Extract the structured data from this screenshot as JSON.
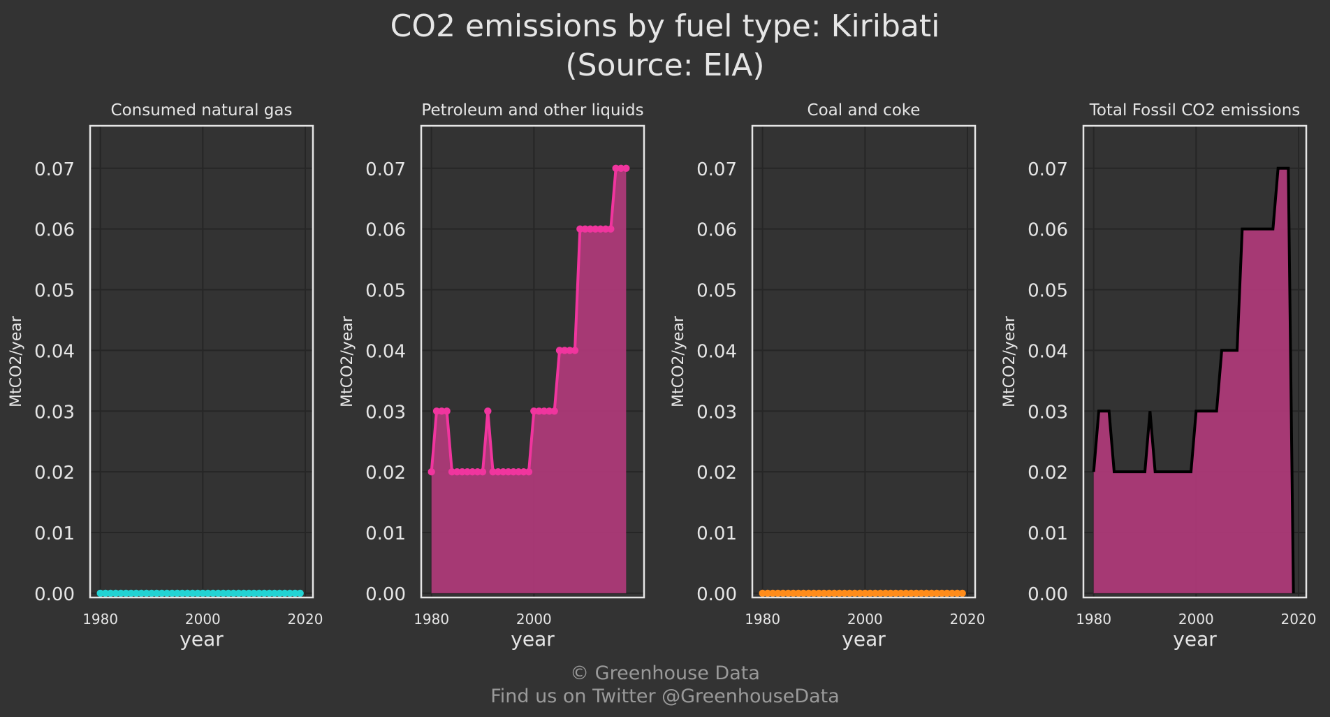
{
  "title_line1": "CO2 emissions by fuel type: Kiribati",
  "title_line2": "(Source: EIA)",
  "footer_line1": "© Greenhouse Data",
  "footer_line2": "Find us on Twitter @GreenhouseData",
  "colors": {
    "background": "#333333",
    "grid": "#262626",
    "frame": "#e6e6e6",
    "text": "#e6e6e6",
    "footer_text": "#9a9a9a",
    "gas": "#22d3d3",
    "petroleum": "#f0359e",
    "coal": "#ff8c1a",
    "total_line": "#000000",
    "fill": "#b03a7a"
  },
  "chart_data": [
    {
      "type": "scatter",
      "title": "Consumed natural gas",
      "xlabel": "year",
      "ylabel": "MtCO2/year",
      "xlim": [
        1978,
        2021.5
      ],
      "ylim": [
        -0.0007,
        0.077
      ],
      "xticks": [
        "1980",
        "2000",
        "2020"
      ],
      "yticks": [
        "0.00",
        "0.01",
        "0.02",
        "0.03",
        "0.04",
        "0.05",
        "0.06",
        "0.07"
      ],
      "series": [
        {
          "x": [
            1980,
            1981,
            1982,
            1983,
            1984,
            1985,
            1986,
            1987,
            1988,
            1989,
            1990,
            1991,
            1992,
            1993,
            1994,
            1995,
            1996,
            1997,
            1998,
            1999,
            2000,
            2001,
            2002,
            2003,
            2004,
            2005,
            2006,
            2007,
            2008,
            2009,
            2010,
            2011,
            2012,
            2013,
            2014,
            2015,
            2016,
            2017,
            2018,
            2019
          ],
          "y": [
            0,
            0,
            0,
            0,
            0,
            0,
            0,
            0,
            0,
            0,
            0,
            0,
            0,
            0,
            0,
            0,
            0,
            0,
            0,
            0,
            0,
            0,
            0,
            0,
            0,
            0,
            0,
            0,
            0,
            0,
            0,
            0,
            0,
            0,
            0,
            0,
            0,
            0,
            0,
            0
          ]
        }
      ]
    },
    {
      "type": "area",
      "title": "Petroleum and other liquids",
      "xlabel": "year",
      "ylabel": "MtCO2/year",
      "xlim": [
        1978,
        2021.5
      ],
      "ylim": [
        -0.0007,
        0.077
      ],
      "xticks": [
        "1980",
        "2000"
      ],
      "yticks": [
        "0.00",
        "0.01",
        "0.02",
        "0.03",
        "0.04",
        "0.05",
        "0.06",
        "0.07"
      ],
      "series": [
        {
          "x": [
            1980,
            1981,
            1982,
            1983,
            1984,
            1985,
            1986,
            1987,
            1988,
            1989,
            1990,
            1991,
            1992,
            1993,
            1994,
            1995,
            1996,
            1997,
            1998,
            1999,
            2000,
            2001,
            2002,
            2003,
            2004,
            2005,
            2006,
            2007,
            2008,
            2009,
            2010,
            2011,
            2012,
            2013,
            2014,
            2015,
            2016,
            2017,
            2018
          ],
          "y": [
            0.02,
            0.03,
            0.03,
            0.03,
            0.02,
            0.02,
            0.02,
            0.02,
            0.02,
            0.02,
            0.02,
            0.03,
            0.02,
            0.02,
            0.02,
            0.02,
            0.02,
            0.02,
            0.02,
            0.02,
            0.03,
            0.03,
            0.03,
            0.03,
            0.03,
            0.04,
            0.04,
            0.04,
            0.04,
            0.06,
            0.06,
            0.06,
            0.06,
            0.06,
            0.06,
            0.06,
            0.07,
            0.07,
            0.07
          ]
        }
      ]
    },
    {
      "type": "scatter",
      "title": "Coal and coke",
      "xlabel": "year",
      "ylabel": "MtCO2/year",
      "xlim": [
        1978,
        2021.5
      ],
      "ylim": [
        -0.0007,
        0.077
      ],
      "xticks": [
        "1980",
        "2000",
        "2020"
      ],
      "yticks": [
        "0.00",
        "0.01",
        "0.02",
        "0.03",
        "0.04",
        "0.05",
        "0.06",
        "0.07"
      ],
      "series": [
        {
          "x": [
            1980,
            1981,
            1982,
            1983,
            1984,
            1985,
            1986,
            1987,
            1988,
            1989,
            1990,
            1991,
            1992,
            1993,
            1994,
            1995,
            1996,
            1997,
            1998,
            1999,
            2000,
            2001,
            2002,
            2003,
            2004,
            2005,
            2006,
            2007,
            2008,
            2009,
            2010,
            2011,
            2012,
            2013,
            2014,
            2015,
            2016,
            2017,
            2018,
            2019
          ],
          "y": [
            0,
            0,
            0,
            0,
            0,
            0,
            0,
            0,
            0,
            0,
            0,
            0,
            0,
            0,
            0,
            0,
            0,
            0,
            0,
            0,
            0,
            0,
            0,
            0,
            0,
            0,
            0,
            0,
            0,
            0,
            0,
            0,
            0,
            0,
            0,
            0,
            0,
            0,
            0,
            0
          ]
        }
      ]
    },
    {
      "type": "area",
      "title": "Total Fossil CO2 emissions",
      "xlabel": "year",
      "ylabel": "MtCO2/year",
      "xlim": [
        1978,
        2021.5
      ],
      "ylim": [
        -0.0007,
        0.077
      ],
      "xticks": [
        "1980",
        "2000",
        "2020"
      ],
      "yticks": [
        "0.00",
        "0.01",
        "0.02",
        "0.03",
        "0.04",
        "0.05",
        "0.06",
        "0.07"
      ],
      "series": [
        {
          "x": [
            1980,
            1981,
            1982,
            1983,
            1984,
            1985,
            1986,
            1987,
            1988,
            1989,
            1990,
            1991,
            1992,
            1993,
            1994,
            1995,
            1996,
            1997,
            1998,
            1999,
            2000,
            2001,
            2002,
            2003,
            2004,
            2005,
            2006,
            2007,
            2008,
            2009,
            2010,
            2011,
            2012,
            2013,
            2014,
            2015,
            2016,
            2017,
            2018,
            2019
          ],
          "y": [
            0.02,
            0.03,
            0.03,
            0.03,
            0.02,
            0.02,
            0.02,
            0.02,
            0.02,
            0.02,
            0.02,
            0.03,
            0.02,
            0.02,
            0.02,
            0.02,
            0.02,
            0.02,
            0.02,
            0.02,
            0.03,
            0.03,
            0.03,
            0.03,
            0.03,
            0.04,
            0.04,
            0.04,
            0.04,
            0.06,
            0.06,
            0.06,
            0.06,
            0.06,
            0.06,
            0.06,
            0.07,
            0.07,
            0.07,
            0
          ]
        }
      ]
    }
  ]
}
